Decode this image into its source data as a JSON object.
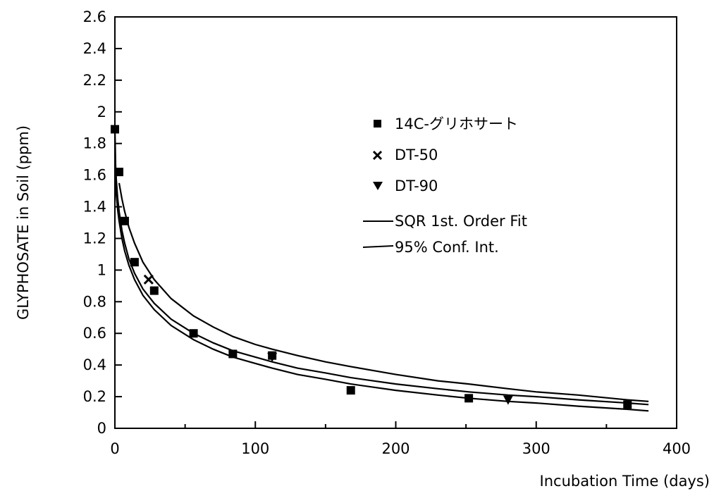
{
  "chart_data": {
    "type": "scatter",
    "title": "",
    "xlabel": "Incubation Time (days)",
    "ylabel": "GLYPHOSATE in Soil (ppm)",
    "xlim": [
      0,
      400
    ],
    "ylim": [
      0,
      2.6
    ],
    "xticks": [
      "0",
      "100",
      "200",
      "300",
      "400"
    ],
    "yticks": [
      "0",
      "0.2",
      "0.4",
      "0.6",
      "0.8",
      "1",
      "1.2",
      "1.4",
      "1.6",
      "1.8",
      "2",
      "2.2",
      "2.4",
      "2.6"
    ],
    "grid": false,
    "legend_position": "upper-right",
    "series": [
      {
        "name": "14C-グリホサート",
        "marker": "square",
        "x": [
          0,
          3,
          7,
          14,
          28,
          56,
          84,
          112,
          168,
          252,
          365
        ],
        "y": [
          1.89,
          1.62,
          1.31,
          1.05,
          0.87,
          0.6,
          0.47,
          0.46,
          0.24,
          0.19,
          0.15
        ]
      },
      {
        "name": "DT-50",
        "marker": "x",
        "x": [
          24
        ],
        "y": [
          0.94
        ]
      },
      {
        "name": "DT-90",
        "marker": "triangle-down",
        "x": [
          112,
          280
        ],
        "y": [
          0.45,
          0.18
        ]
      },
      {
        "name": "SQR 1st. Order Fit",
        "line": "solid",
        "x": [
          0,
          0.5,
          1,
          2,
          3,
          5,
          7,
          10,
          14,
          20,
          28,
          40,
          56,
          70,
          84,
          100,
          112,
          130,
          150,
          168,
          200,
          230,
          252,
          280,
          300,
          330,
          365,
          380
        ],
        "y": [
          1.9,
          1.66,
          1.57,
          1.45,
          1.37,
          1.25,
          1.17,
          1.07,
          0.98,
          0.88,
          0.79,
          0.69,
          0.6,
          0.54,
          0.49,
          0.45,
          0.42,
          0.38,
          0.35,
          0.32,
          0.28,
          0.25,
          0.23,
          0.21,
          0.2,
          0.18,
          0.16,
          0.15
        ]
      },
      {
        "name": "95% Conf. Int.",
        "line": "solid",
        "x": [
          0,
          0.5,
          1,
          2,
          3,
          5,
          7,
          10,
          14,
          20,
          28,
          40,
          56,
          70,
          84,
          100,
          112,
          130,
          150,
          168,
          200,
          230,
          252,
          280,
          300,
          330,
          365,
          380
        ],
        "y": [
          1.62,
          1.55,
          1.48,
          1.38,
          1.31,
          1.2,
          1.12,
          1.03,
          0.94,
          0.84,
          0.75,
          0.65,
          0.56,
          0.5,
          0.45,
          0.41,
          0.38,
          0.34,
          0.31,
          0.28,
          0.24,
          0.21,
          0.19,
          0.17,
          0.16,
          0.14,
          0.12,
          0.11
        ]
      },
      {
        "name": "",
        "line": "solid",
        "x": [
          3,
          5,
          7,
          10,
          14,
          20,
          28,
          40,
          56,
          70,
          84,
          100,
          112,
          130,
          150,
          168,
          200,
          230,
          252,
          280,
          300,
          330,
          365,
          380
        ],
        "y": [
          1.55,
          1.45,
          1.37,
          1.27,
          1.17,
          1.05,
          0.94,
          0.82,
          0.71,
          0.64,
          0.58,
          0.53,
          0.5,
          0.46,
          0.42,
          0.39,
          0.34,
          0.3,
          0.28,
          0.25,
          0.23,
          0.21,
          0.18,
          0.17
        ]
      }
    ],
    "colors": {
      "ink": "#000000",
      "background": "#ffffff"
    }
  }
}
